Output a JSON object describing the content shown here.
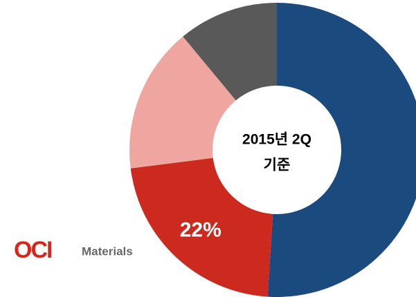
{
  "chart_data": {
    "type": "donut",
    "center_label": [
      "2015년 2Q",
      "기준"
    ],
    "categories": [
      null,
      null,
      null,
      null
    ],
    "values": [
      51,
      22,
      16,
      11
    ],
    "value_labels": [
      null,
      "22%",
      null,
      null
    ],
    "colors": [
      "#1b4a7f",
      "#cc2a1e",
      "#f0a6a0",
      "#595959"
    ]
  },
  "logo": {
    "mark": "OCI",
    "name": "Materials"
  }
}
